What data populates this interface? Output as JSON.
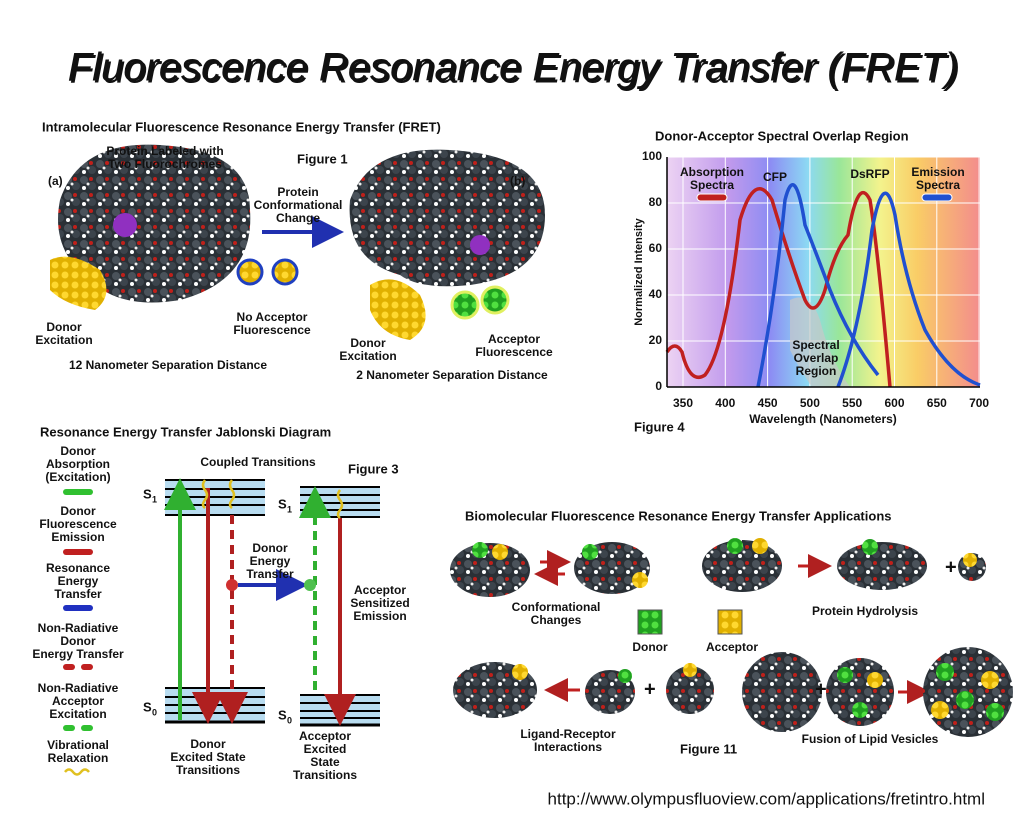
{
  "title": "Fluorescence Resonance Energy Transfer (FRET)",
  "figure1": {
    "heading": "Intramolecular Fluorescence Resonance Energy Transfer (FRET)",
    "protein_label": [
      "Protein Labeled with",
      "Two Fluorochromes"
    ],
    "figure_label": "Figure 1",
    "panel_a": "(a)",
    "panel_b": "(b)",
    "change": [
      "Protein",
      "Conformational",
      "Change"
    ],
    "donor_excitation_a": [
      "Donor",
      "Excitation"
    ],
    "no_acceptor": [
      "No Acceptor",
      "Fluorescence"
    ],
    "separation_a": "12 Nanometer Separation Distance",
    "donor_excitation_b": [
      "Donor",
      "Excitation"
    ],
    "acceptor_fluorescence": [
      "Acceptor",
      "Fluorescence"
    ],
    "separation_b": "2 Nanometer Separation Distance"
  },
  "figure4": {
    "heading": "Donor-Acceptor Spectral Overlap Region",
    "y_label": "Normalized Intensity",
    "x_label": "Wavelength (Nanometers)",
    "figure_label": "Figure 4",
    "yticks": [
      0,
      20,
      40,
      60,
      80,
      100
    ],
    "xticks": [
      350,
      400,
      450,
      500,
      550,
      600,
      650,
      700
    ],
    "absorption": [
      "Absorption",
      "Spectra"
    ],
    "cfp": "CFP",
    "dsrfp": "DsRFP",
    "emission": [
      "Emission",
      "Spectra"
    ],
    "overlap": [
      "Spectral",
      "Overlap",
      "Region"
    ]
  },
  "figure3": {
    "heading": "Resonance Energy Transfer Jablonski Diagram",
    "coupled": "Coupled Transitions",
    "figure_label": "Figure 3",
    "legend": [
      [
        "Donor",
        "Absorption",
        "(Excitation)"
      ],
      [
        "Donor",
        "Fluorescence",
        "Emission"
      ],
      [
        "Resonance",
        "Energy",
        "Transfer"
      ],
      [
        "Non-Radiative",
        "Donor",
        "Energy Transfer"
      ],
      [
        "Non-Radiative",
        "Acceptor",
        "Excitation"
      ],
      [
        "Vibrational",
        "Relaxation"
      ]
    ],
    "state_symbol": "S",
    "upper_index": "1",
    "lower_index": "0",
    "donor_transfer": [
      "Donor",
      "Energy",
      "Transfer"
    ],
    "acceptor_emission": [
      "Acceptor",
      "Sensitized",
      "Emission"
    ],
    "donor_transitions": [
      "Donor",
      "Excited State",
      "Transitions"
    ],
    "acceptor_transitions": [
      "Acceptor",
      "Excited",
      "State",
      "Transitions"
    ]
  },
  "figure11": {
    "heading": "Biomolecular Fluorescence Resonance Energy Transfer Applications",
    "conformational": [
      "Conformational",
      "Changes"
    ],
    "hydrolysis": "Protein Hydrolysis",
    "donor": "Donor",
    "acceptor": "Acceptor",
    "ligand": [
      "Ligand-Receptor",
      "Interactions"
    ],
    "figure_label": "Figure 11",
    "fusion": "Fusion of Lipid Vesicles"
  },
  "url": "http://www.olympusfluoview.com/applications/fretintro.html"
}
